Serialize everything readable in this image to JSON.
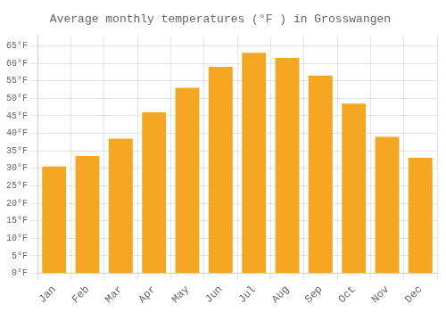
{
  "chart_data": {
    "type": "bar",
    "title": "Average monthly temperatures (°F ) in Grosswangen",
    "categories": [
      "Jan",
      "Feb",
      "Mar",
      "Apr",
      "May",
      "Jun",
      "Jul",
      "Aug",
      "Sep",
      "Oct",
      "Nov",
      "Dec"
    ],
    "values": [
      30.5,
      33.5,
      38.5,
      46.0,
      53.0,
      59.0,
      63.0,
      61.5,
      56.5,
      48.5,
      39.0,
      33.0
    ],
    "color": "#F5A623",
    "ylim": [
      0,
      68
    ],
    "yticks": [
      {
        "value": 0,
        "label": "0°F"
      },
      {
        "value": 5,
        "label": "5°F"
      },
      {
        "value": 10,
        "label": "10°F"
      },
      {
        "value": 15,
        "label": "15°F"
      },
      {
        "value": 20,
        "label": "20°F"
      },
      {
        "value": 25,
        "label": "25°F"
      },
      {
        "value": 30,
        "label": "30°F"
      },
      {
        "value": 35,
        "label": "35°F"
      },
      {
        "value": 40,
        "label": "40°F"
      },
      {
        "value": 45,
        "label": "45°F"
      },
      {
        "value": 50,
        "label": "50°F"
      },
      {
        "value": 55,
        "label": "55°F"
      },
      {
        "value": 60,
        "label": "60°F"
      },
      {
        "value": 65,
        "label": "65°F"
      }
    ],
    "grid": true
  }
}
